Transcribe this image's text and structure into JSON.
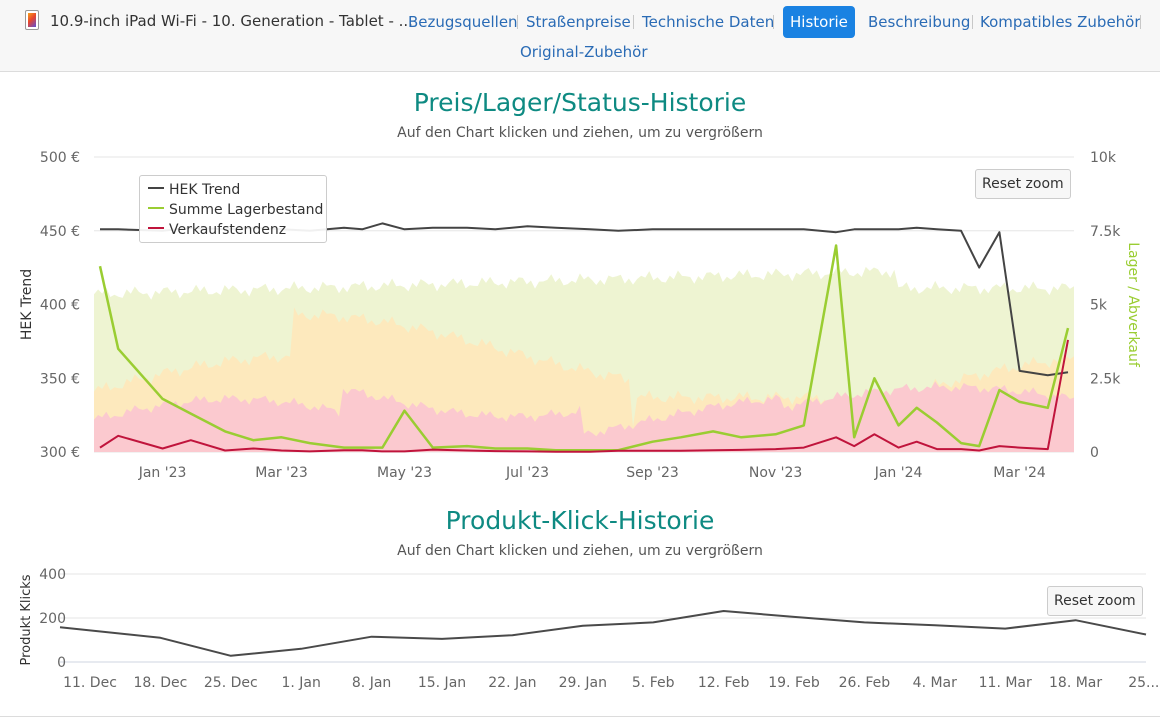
{
  "header": {
    "product_title": "10.9-inch iPad Wi-Fi - 10. Generation - Tablet - ...",
    "tabs": [
      {
        "label": "Bezugsquellen",
        "active": false
      },
      {
        "label": "Straßenpreise",
        "active": false
      },
      {
        "label": "Technische Daten",
        "active": false
      },
      {
        "label": "Historie",
        "active": true
      },
      {
        "label": "Beschreibung",
        "active": false
      },
      {
        "label": "Kompatibles Zubehör",
        "active": false
      },
      {
        "label": "Original-Zubehör",
        "active": false
      }
    ]
  },
  "colors": {
    "accent": "#1a82e2",
    "link": "#2a6bb5",
    "title": "#0e8a82",
    "hek": "#444444",
    "stock": "#9acd32",
    "sales": "#c0143c"
  },
  "chart_data": [
    {
      "type": "line",
      "title": "Preis/Lager/Status-Historie",
      "subtitle": "Auf den Chart klicken und ziehen, um zu vergrößern",
      "reset_zoom_label": "Reset zoom",
      "ylabel": "HEK Trend",
      "y2label": "Lager / Abverkauf",
      "ylim": [
        300,
        500
      ],
      "y2lim": [
        0,
        10000
      ],
      "y_ticks": [
        "300 €",
        "350 €",
        "400 €",
        "450 €",
        "500 €"
      ],
      "y2_ticks": [
        "0",
        "2.5k",
        "5k",
        "7.5k",
        "10k"
      ],
      "x_ticks": [
        "Jan '23",
        "Mar '23",
        "May '23",
        "Jul '23",
        "Sep '23",
        "Nov '23",
        "Jan '24",
        "Mar '24"
      ],
      "legend": [
        "HEK Trend",
        "Summe Lagerbestand",
        "Verkaufstendenz"
      ],
      "legend_position": "top-left",
      "x": [
        "2022-12-01",
        "2022-12-10",
        "2023-01-01",
        "2023-01-15",
        "2023-02-01",
        "2023-02-15",
        "2023-03-01",
        "2023-03-15",
        "2023-04-01",
        "2023-04-10",
        "2023-04-20",
        "2023-05-01",
        "2023-05-15",
        "2023-06-01",
        "2023-06-15",
        "2023-07-01",
        "2023-07-15",
        "2023-08-01",
        "2023-08-15",
        "2023-09-01",
        "2023-09-15",
        "2023-10-01",
        "2023-10-15",
        "2023-11-01",
        "2023-11-15",
        "2023-12-01",
        "2023-12-10",
        "2023-12-20",
        "2024-01-01",
        "2024-01-10",
        "2024-01-20",
        "2024-02-01",
        "2024-02-10",
        "2024-02-20",
        "2024-03-01",
        "2024-03-15",
        "2024-03-25"
      ],
      "series": [
        {
          "name": "HEK Trend",
          "axis": "left",
          "values": [
            451,
            451,
            450,
            452,
            451,
            452,
            451,
            450,
            452,
            451,
            455,
            451,
            452,
            452,
            451,
            453,
            452,
            451,
            450,
            451,
            451,
            451,
            451,
            451,
            451,
            449,
            451,
            451,
            451,
            452,
            451,
            450,
            425,
            449,
            355,
            352,
            354
          ]
        },
        {
          "name": "Summe Lagerbestand",
          "axis": "right",
          "values": [
            6300,
            3500,
            1800,
            1300,
            700,
            400,
            500,
            300,
            150,
            150,
            150,
            1400,
            150,
            200,
            120,
            120,
            60,
            60,
            60,
            350,
            500,
            700,
            500,
            600,
            900,
            7000,
            500,
            2500,
            900,
            1500,
            1000,
            300,
            200,
            2100,
            1700,
            1500,
            4200
          ]
        },
        {
          "name": "Verkaufstendenz",
          "axis": "right",
          "values": [
            150,
            550,
            120,
            400,
            50,
            120,
            50,
            20,
            60,
            60,
            20,
            20,
            80,
            50,
            30,
            20,
            10,
            10,
            40,
            40,
            40,
            60,
            70,
            100,
            150,
            500,
            200,
            600,
            150,
            350,
            100,
            100,
            50,
            200,
            150,
            100,
            3800
          ]
        }
      ],
      "grid": true
    },
    {
      "type": "line",
      "title": "Produkt-Klick-Historie",
      "subtitle": "Auf den Chart klicken und ziehen, um zu vergrößern",
      "reset_zoom_label": "Reset zoom",
      "ylabel": "Produkt Klicks",
      "ylim": [
        0,
        400
      ],
      "y_ticks": [
        "0",
        "200",
        "400"
      ],
      "categories": [
        "11. Dec",
        "18. Dec",
        "25. Dec",
        "1. Jan",
        "8. Jan",
        "15. Jan",
        "22. Jan",
        "29. Jan",
        "5. Feb",
        "12. Feb",
        "19. Feb",
        "26. Feb",
        "4. Mar",
        "11. Mar",
        "18. Mar",
        "25...."
      ],
      "series": [
        {
          "name": "Produkt Klicks",
          "values": [
            158,
            110,
            28,
            60,
            115,
            105,
            122,
            165,
            180,
            232,
            205,
            180,
            167,
            152,
            190,
            125
          ]
        }
      ],
      "grid": true
    }
  ]
}
